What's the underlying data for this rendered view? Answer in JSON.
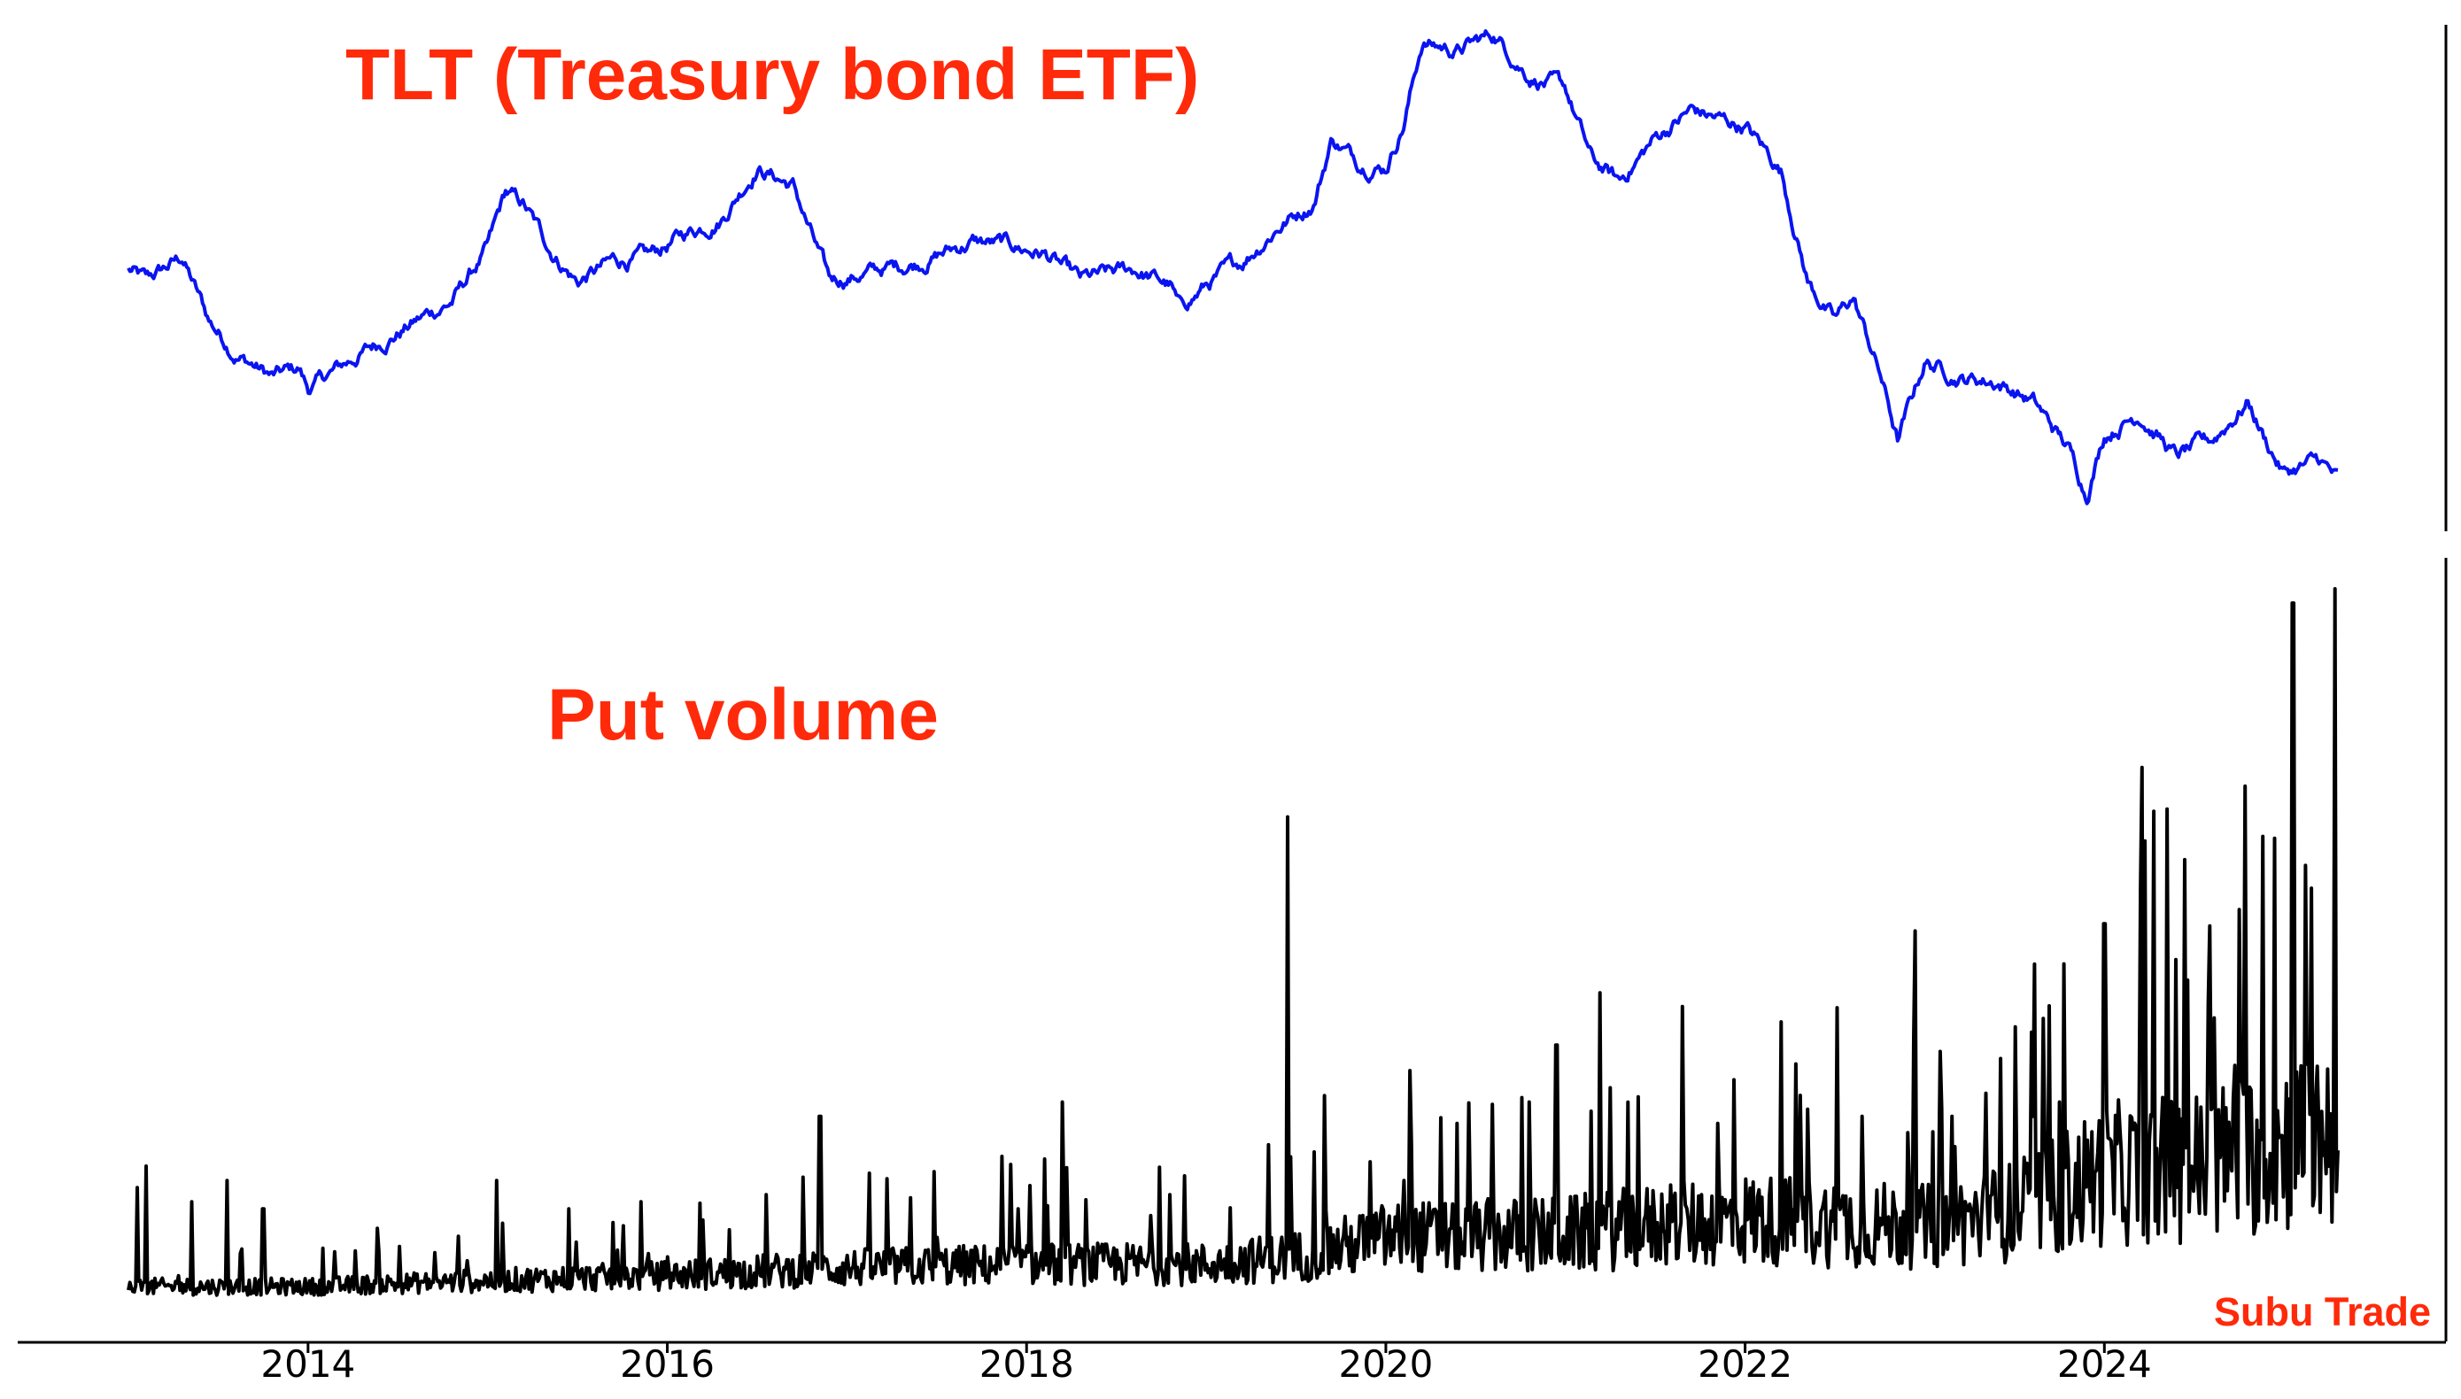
{
  "chart_data": [
    {
      "type": "line",
      "title": "TLT (Treasury bond ETF)",
      "color": "#0a14f0",
      "x_range": [
        2013.0,
        2025.3
      ],
      "anchors": [
        [
          2013.0,
          93.5
        ],
        [
          2013.1,
          92.0
        ],
        [
          2013.3,
          95.0
        ],
        [
          2013.45,
          87.0
        ],
        [
          2013.6,
          83.0
        ],
        [
          2013.8,
          80.0
        ],
        [
          2013.95,
          81.0
        ],
        [
          2014.0,
          78.5
        ],
        [
          2014.3,
          83.0
        ],
        [
          2014.6,
          87.0
        ],
        [
          2014.8,
          89.5
        ],
        [
          2015.0,
          96.0
        ],
        [
          2015.1,
          103.0
        ],
        [
          2015.2,
          101.5
        ],
        [
          2015.35,
          96.0
        ],
        [
          2015.5,
          92.0
        ],
        [
          2015.7,
          94.5
        ],
        [
          2015.9,
          95.0
        ],
        [
          2016.1,
          98.0
        ],
        [
          2016.3,
          100.0
        ],
        [
          2016.5,
          106.5
        ],
        [
          2016.7,
          104.0
        ],
        [
          2016.9,
          92.0
        ],
        [
          2017.1,
          93.0
        ],
        [
          2017.4,
          94.5
        ],
        [
          2017.7,
          97.0
        ],
        [
          2017.9,
          96.5
        ],
        [
          2018.1,
          95.5
        ],
        [
          2018.3,
          92.0
        ],
        [
          2018.6,
          93.5
        ],
        [
          2018.8,
          91.5
        ],
        [
          2018.85,
          88.5
        ],
        [
          2019.0,
          91.5
        ],
        [
          2019.2,
          94.5
        ],
        [
          2019.4,
          99.0
        ],
        [
          2019.6,
          102.0
        ],
        [
          2019.7,
          110.0
        ],
        [
          2019.85,
          107.0
        ],
        [
          2020.0,
          106.5
        ],
        [
          2020.1,
          112.0
        ],
        [
          2020.2,
          122.0
        ],
        [
          2020.4,
          121.0
        ],
        [
          2020.6,
          123.0
        ],
        [
          2020.8,
          118.0
        ],
        [
          2021.0,
          116.0
        ],
        [
          2021.15,
          107.0
        ],
        [
          2021.3,
          104.5
        ],
        [
          2021.5,
          110.0
        ],
        [
          2021.7,
          113.5
        ],
        [
          2021.9,
          112.0
        ],
        [
          2022.0,
          111.5
        ],
        [
          2022.2,
          106.0
        ],
        [
          2022.35,
          92.0
        ],
        [
          2022.5,
          87.0
        ],
        [
          2022.6,
          90.0
        ],
        [
          2022.75,
          80.5
        ],
        [
          2022.85,
          72.0
        ],
        [
          2023.0,
          82.0
        ],
        [
          2023.2,
          80.0
        ],
        [
          2023.4,
          79.5
        ],
        [
          2023.6,
          77.0
        ],
        [
          2023.8,
          71.0
        ],
        [
          2023.9,
          65.5
        ],
        [
          2024.0,
          73.0
        ],
        [
          2024.2,
          75.5
        ],
        [
          2024.4,
          70.0
        ],
        [
          2024.6,
          72.0
        ],
        [
          2024.8,
          77.0
        ],
        [
          2024.9,
          72.0
        ],
        [
          2025.0,
          68.0
        ],
        [
          2025.2,
          69.5
        ],
        [
          2025.3,
          67.0
        ]
      ],
      "ylim": [
        64,
        124
      ]
    },
    {
      "type": "line",
      "title": "Put volume",
      "color": "#000000",
      "x_range": [
        2013.0,
        2025.3
      ],
      "ylim": [
        0,
        1
      ],
      "baseline": [
        [
          2013.0,
          0.02
        ],
        [
          2014.0,
          0.02
        ],
        [
          2015.0,
          0.028
        ],
        [
          2016.0,
          0.035
        ],
        [
          2017.0,
          0.045
        ],
        [
          2018.0,
          0.05
        ],
        [
          2019.0,
          0.05
        ],
        [
          2019.5,
          0.06
        ],
        [
          2020.0,
          0.085
        ],
        [
          2021.0,
          0.09
        ],
        [
          2022.0,
          0.11
        ],
        [
          2023.0,
          0.1
        ],
        [
          2023.5,
          0.12
        ],
        [
          2024.0,
          0.17
        ],
        [
          2024.5,
          0.18
        ],
        [
          2025.0,
          0.21
        ],
        [
          2025.3,
          0.23
        ]
      ],
      "spikes": [
        [
          2013.05,
          0.16
        ],
        [
          2013.1,
          0.19
        ],
        [
          2013.35,
          0.14
        ],
        [
          2013.55,
          0.17
        ],
        [
          2013.75,
          0.13
        ],
        [
          2014.15,
          0.07
        ],
        [
          2015.05,
          0.17
        ],
        [
          2015.45,
          0.13
        ],
        [
          2015.85,
          0.14
        ],
        [
          2016.55,
          0.15
        ],
        [
          2016.85,
          0.26
        ],
        [
          2017.5,
          0.09
        ],
        [
          2017.95,
          0.13
        ],
        [
          2018.1,
          0.2
        ],
        [
          2018.2,
          0.28
        ],
        [
          2018.8,
          0.15
        ],
        [
          2019.35,
          0.22
        ],
        [
          2019.45,
          0.68
        ],
        [
          2019.6,
          0.21
        ],
        [
          2020.1,
          0.17
        ],
        [
          2020.4,
          0.25
        ],
        [
          2020.8,
          0.28
        ],
        [
          2020.95,
          0.36
        ],
        [
          2021.25,
          0.3
        ],
        [
          2021.65,
          0.22
        ],
        [
          2021.85,
          0.25
        ],
        [
          2022.35,
          0.27
        ],
        [
          2022.65,
          0.26
        ],
        [
          2022.95,
          0.52
        ],
        [
          2023.15,
          0.26
        ],
        [
          2023.6,
          0.26
        ],
        [
          2023.75,
          0.28
        ],
        [
          2024.0,
          0.53
        ],
        [
          2024.2,
          0.58
        ],
        [
          2024.45,
          0.62
        ],
        [
          2024.75,
          0.55
        ],
        [
          2024.95,
          0.65
        ],
        [
          2025.05,
          0.98
        ],
        [
          2025.15,
          0.58
        ],
        [
          2025.28,
          1.0
        ]
      ]
    }
  ],
  "axis": {
    "ticks": [
      "2014",
      "2016",
      "2018",
      "2020",
      "2022",
      "2024"
    ],
    "tick_values": [
      2014,
      2016,
      2018,
      2020,
      2022,
      2024
    ]
  },
  "watermark": "Subu Trade"
}
